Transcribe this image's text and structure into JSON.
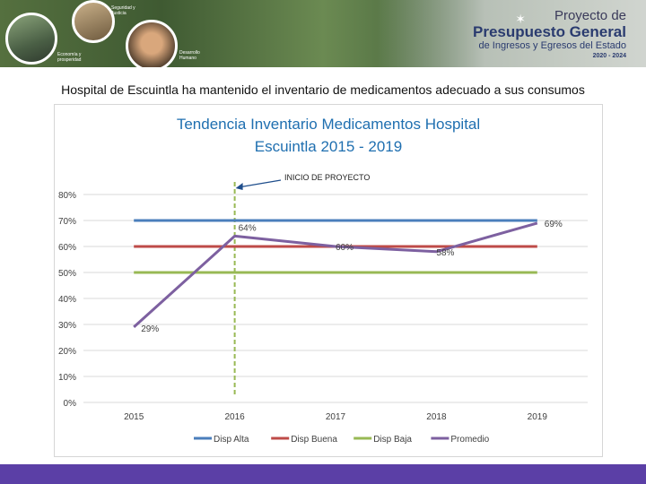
{
  "banner": {
    "caption1": "Seguridad y Justicia",
    "caption2": "Economía y prosperidad",
    "caption3": "Desarrollo Humano",
    "brand_line1": "Proyecto de",
    "brand_line2": "Presupuesto General",
    "brand_line3": "de Ingresos y Egresos del Estado",
    "brand_line4": "2020 - 2024"
  },
  "heading": "Hospital de Escuintla ha mantenido el inventario de medicamentos adecuado a sus consumos",
  "colors": {
    "alta": "#4a7ebb",
    "buena": "#be4b48",
    "baja": "#98b954",
    "promedio": "#7d60a0",
    "marker": "#98b954",
    "title": "#1f6fb0",
    "footer": "#5b3fa6"
  },
  "chart_data": {
    "type": "line",
    "title": "Tendencia Inventario Medicamentos Hospital Escuintla 2015 - 2019",
    "title_line1": "Tendencia Inventario Medicamentos Hospital",
    "title_line2": "Escuintla 2015 - 2019",
    "x": [
      "2015",
      "2016",
      "2017",
      "2018",
      "2019"
    ],
    "ylim": [
      0,
      80
    ],
    "yticks": [
      "0%",
      "10%",
      "20%",
      "30%",
      "40%",
      "50%",
      "60%",
      "70%",
      "80%"
    ],
    "grid": true,
    "legend_position": "bottom",
    "series": [
      {
        "name": "Disp Alta",
        "values": [
          70,
          70,
          70,
          70,
          70
        ]
      },
      {
        "name": "Disp Buena",
        "values": [
          60,
          60,
          60,
          60,
          60
        ]
      },
      {
        "name": "Disp Baja",
        "values": [
          50,
          50,
          50,
          50,
          50
        ]
      },
      {
        "name": "Promedio",
        "values": [
          29,
          64,
          60,
          58,
          69
        ]
      }
    ],
    "data_labels": [
      "29%",
      "64%",
      "60%",
      "58%",
      "69%"
    ],
    "annotation": {
      "text": "INICIO DE PROYECTO",
      "x": 2016
    }
  }
}
